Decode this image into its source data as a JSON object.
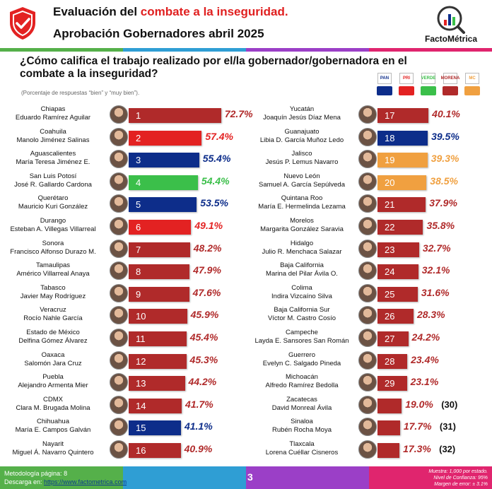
{
  "header": {
    "title_prefix": "Evaluación del ",
    "title_highlight": "combate a la inseguridad.",
    "subtitle": "Aprobación Gobernadores abril 2025",
    "brand": "FactoMétrica"
  },
  "question": "¿Cómo califica el trabajo realizado por el/la gobernador/gobernadora en el combate a la inseguridad?",
  "note": "(Porcentaje de respuestas “bien” y “muy bien”).",
  "parties": [
    {
      "logo": "PAN",
      "color": "#0d2d8a"
    },
    {
      "logo": "PRI",
      "color": "#e32222"
    },
    {
      "logo": "VERDE",
      "color": "#3bbf4a"
    },
    {
      "logo": "MORENA",
      "color": "#b02a2a"
    },
    {
      "logo": "MC",
      "color": "#f0a040"
    }
  ],
  "colors": {
    "morena": "#b02a2a",
    "pri": "#e32222",
    "pan": "#0d2d8a",
    "verde": "#3bbf4a",
    "mc": "#f0a040"
  },
  "chart_data": {
    "type": "bar",
    "title": "Evaluación del combate a la inseguridad. Aprobación Gobernadores abril 2025",
    "unit": "%",
    "series": [
      {
        "rank": "1",
        "state": "Chiapas",
        "governor": "Eduardo Ramírez Aguilar",
        "value": 72.7,
        "label": "72.7%",
        "party": "morena"
      },
      {
        "rank": "2",
        "state": "Coahuila",
        "governor": "Manolo Jiménez Salinas",
        "value": 57.4,
        "label": "57.4%",
        "party": "pri"
      },
      {
        "rank": "3",
        "state": "Aguascalientes",
        "governor": "María Teresa Jiménez E.",
        "value": 55.4,
        "label": "55.4%",
        "party": "pan"
      },
      {
        "rank": "4",
        "state": "San Luis Potosí",
        "governor": "José R. Gallardo Cardona",
        "value": 54.4,
        "label": "54.4%",
        "party": "verde"
      },
      {
        "rank": "5",
        "state": "Querétaro",
        "governor": "Mauricio Kuri González",
        "value": 53.5,
        "label": "53.5%",
        "party": "pan"
      },
      {
        "rank": "6",
        "state": "Durango",
        "governor": "Esteban A. Villegas Villarreal",
        "value": 49.1,
        "label": "49.1%",
        "party": "pri"
      },
      {
        "rank": "7",
        "state": "Sonora",
        "governor": "Francisco Alfonso Durazo M.",
        "value": 48.2,
        "label": "48.2%",
        "party": "morena"
      },
      {
        "rank": "8",
        "state": "Tamaulipas",
        "governor": "Américo Villarreal Anaya",
        "value": 47.9,
        "label": "47.9%",
        "party": "morena"
      },
      {
        "rank": "9",
        "state": "Tabasco",
        "governor": "Javier May Rodríguez",
        "value": 47.6,
        "label": "47.6%",
        "party": "morena"
      },
      {
        "rank": "10",
        "state": "Veracruz",
        "governor": "Rocío Nahle García",
        "value": 45.9,
        "label": "45.9%",
        "party": "morena"
      },
      {
        "rank": "11",
        "state": "Estado de México",
        "governor": "Delfina Gómez Álvarez",
        "value": 45.4,
        "label": "45.4%",
        "party": "morena"
      },
      {
        "rank": "12",
        "state": "Oaxaca",
        "governor": "Salomón Jara Cruz",
        "value": 45.3,
        "label": "45.3%",
        "party": "morena"
      },
      {
        "rank": "13",
        "state": "Puebla",
        "governor": "Alejandro Armenta Mier",
        "value": 44.2,
        "label": "44.2%",
        "party": "morena"
      },
      {
        "rank": "14",
        "state": "CDMX",
        "governor": "Clara M. Brugada Molina",
        "value": 41.7,
        "label": "41.7%",
        "party": "morena"
      },
      {
        "rank": "15",
        "state": "Chihuahua",
        "governor": "María E. Campos Galván",
        "value": 41.1,
        "label": "41.1%",
        "party": "pan"
      },
      {
        "rank": "16",
        "state": "Nayarit",
        "governor": "Miguel Á. Navarro Quintero",
        "value": 40.9,
        "label": "40.9%",
        "party": "morena"
      },
      {
        "rank": "17",
        "state": "Yucatán",
        "governor": "Joaquín Jesús Díaz Mena",
        "value": 40.1,
        "label": "40.1%",
        "party": "morena"
      },
      {
        "rank": "18",
        "state": "Guanajuato",
        "governor": "Libia D. García Muñoz Ledo",
        "value": 39.5,
        "label": "39.5%",
        "party": "pan"
      },
      {
        "rank": "19",
        "state": "Jalisco",
        "governor": "Jesús P. Lemus Navarro",
        "value": 39.3,
        "label": "39.3%",
        "party": "mc"
      },
      {
        "rank": "20",
        "state": "Nuevo León",
        "governor": "Samuel A. García Sepúlveda",
        "value": 38.5,
        "label": "38.5%",
        "party": "mc"
      },
      {
        "rank": "21",
        "state": "Quintana Roo",
        "governor": "María E. Hermelinda Lezama",
        "value": 37.9,
        "label": "37.9%",
        "party": "morena"
      },
      {
        "rank": "22",
        "state": "Morelos",
        "governor": "Margarita González Saravia",
        "value": 35.8,
        "label": "35.8%",
        "party": "morena"
      },
      {
        "rank": "23",
        "state": "Hidalgo",
        "governor": "Julio R. Menchaca Salazar",
        "value": 32.7,
        "label": "32.7%",
        "party": "morena"
      },
      {
        "rank": "24",
        "state": "Baja California",
        "governor": "Marina del Pilar Ávila O.",
        "value": 32.1,
        "label": "32.1%",
        "party": "morena"
      },
      {
        "rank": "25",
        "state": "Colima",
        "governor": "Indira Vizcaíno Silva",
        "value": 31.6,
        "label": "31.6%",
        "party": "morena"
      },
      {
        "rank": "26",
        "state": "Baja California Sur",
        "governor": "Víctor M. Castro Cosío",
        "value": 28.3,
        "label": "28.3%",
        "party": "morena"
      },
      {
        "rank": "27",
        "state": "Campeche",
        "governor": "Layda E. Sansores San Román",
        "value": 24.2,
        "label": "24.2%",
        "party": "morena"
      },
      {
        "rank": "28",
        "state": "Guerrero",
        "governor": "Evelyn C. Salgado Pineda",
        "value": 23.4,
        "label": "23.4%",
        "party": "morena"
      },
      {
        "rank": "29",
        "state": "Michoacán",
        "governor": "Alfredo Ramírez Bedolla",
        "value": 23.1,
        "label": "23.1%",
        "party": "morena"
      },
      {
        "rank": "",
        "extra": "(30)",
        "state": "Zacatecas",
        "governor": "David Monreal Ávila",
        "value": 19.0,
        "label": "19.0%",
        "party": "morena"
      },
      {
        "rank": "",
        "extra": "(31)",
        "state": "Sinaloa",
        "governor": "Rubén Rocha Moya",
        "value": 17.7,
        "label": "17.7%",
        "party": "morena"
      },
      {
        "rank": "",
        "extra": "(32)",
        "state": "Tlaxcala",
        "governor": "Lorena Cuéllar Cisneros",
        "value": 17.3,
        "label": "17.3%",
        "party": "morena"
      }
    ]
  },
  "footer": {
    "methodology": "Metodología página: 8",
    "download_label": "Descarga en: ",
    "download_link": "https://www.factometrica.com",
    "page": "3",
    "sample": "Muestra: 1,000 por estado.",
    "confidence": "Nivel de Confianza: 95%",
    "margin": "Margen de error: ± 3.1%"
  }
}
